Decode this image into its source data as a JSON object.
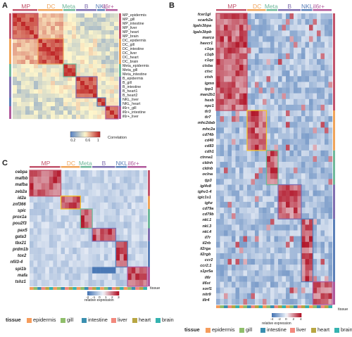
{
  "figure": {
    "panels": [
      "A",
      "B",
      "C"
    ]
  },
  "colors": {
    "cluster": {
      "MP": "#c2536b",
      "DC": "#f0a45a",
      "Meta": "#6fb89a",
      "B": "#7f6eb0",
      "NKL": "#5a7fb8",
      "il6r+": "#b05a9c"
    },
    "tissue": {
      "epidermis": "#f59c5c",
      "gill": "#8fbe6b",
      "intestine": "#3a8fb0",
      "liver": "#f2897d",
      "heart": "#b8a642",
      "brain": "#35b3b0"
    },
    "heat_low": "#3b6fb0",
    "heat_mid": "#ffffff",
    "heat_high": "#b2182b"
  },
  "panel_a": {
    "clusters": [
      "MP",
      "DC",
      "Meta",
      "B",
      "NKL",
      "il6r+"
    ],
    "rows": [
      "MP_epidermis",
      "MP_gill",
      "MP_intestine",
      "MP_liver",
      "MP_heart",
      "MP_brain",
      "DC_epidermis",
      "DC_gill",
      "DC_intestine",
      "DC_liver",
      "DC_heart",
      "DC_brain",
      "Meta_epidermis",
      "Meta_gill",
      "Meta_intestine",
      "B_epidermis",
      "B_gill",
      "B_intestine",
      "B_heart1",
      "B_heart2",
      "NKL_liver",
      "NKL_heart",
      "il6r+_gill",
      "il6r+_intestine",
      "il6r+_liver"
    ],
    "colorbar": {
      "title": "Correlation",
      "ticks": [
        "0.2",
        "0.6",
        "1"
      ]
    }
  },
  "panel_b": {
    "clusters": [
      "MP",
      "DC",
      "Meta",
      "B",
      "NKL",
      "il6r+"
    ],
    "genes": [
      "fcer1gl",
      "scarb2a",
      "lgals3bpa",
      "lgals3bpb",
      "marco",
      "havcr1",
      "c1qa",
      "c1qb",
      "c1qc",
      "ctsba",
      "ctsc",
      "ctsh",
      "lgmn",
      "tpp1",
      "man2b1",
      "hexb",
      "npc1",
      "tlr3",
      "tlr7",
      "mhc2dab",
      "mhc2a",
      "cd74b",
      "cd40",
      "cd83",
      "cdh1",
      "ctnna1",
      "cldnh",
      "cldnb",
      "oclna",
      "tjp3",
      "igl4v8",
      "ighv1-4",
      "igic1s1",
      "ighz",
      "cd79a",
      "cd79b",
      "nkl.1",
      "nkl.3",
      "nkl.4",
      "il7r",
      "il2rb",
      "il2rga",
      "il2rgb",
      "ccr2",
      "ccr2.1",
      "s1pr5a",
      "il6r",
      "il6st",
      "sorl1",
      "nitr9",
      "illr4"
    ],
    "colorbar": {
      "title": "relative expression",
      "ticks": [
        "-4",
        "-2",
        "0",
        "2",
        "4"
      ]
    },
    "tissue_label": "tissue"
  },
  "panel_c": {
    "clusters": [
      "MP",
      "DC",
      "Meta",
      "B",
      "NKL",
      "il6r+"
    ],
    "genes": [
      "cebpa",
      "mafbb",
      "mafba",
      "zeb2a",
      "id2a",
      "znf366",
      "spic",
      "prox1a",
      "pou2f3",
      "pax5",
      "gata3",
      "tbx21",
      "prdm1b",
      "tox2",
      "nfil3-4",
      "spi1b",
      "mafa",
      "tshz1"
    ],
    "colorbar": {
      "title": "relative expression",
      "ticks": [
        "-2",
        "-1",
        "0",
        "1",
        "2",
        "3"
      ]
    },
    "tissue_label": "tissue"
  },
  "legend_left": {
    "title": "tissue",
    "items": [
      "epidermis",
      "gill",
      "intestine",
      "liver",
      "heart",
      "brain"
    ]
  },
  "legend_right": {
    "title": "tissue",
    "items": [
      "epidermis",
      "gill",
      "intestine",
      "liver",
      "heart",
      "brain"
    ]
  }
}
